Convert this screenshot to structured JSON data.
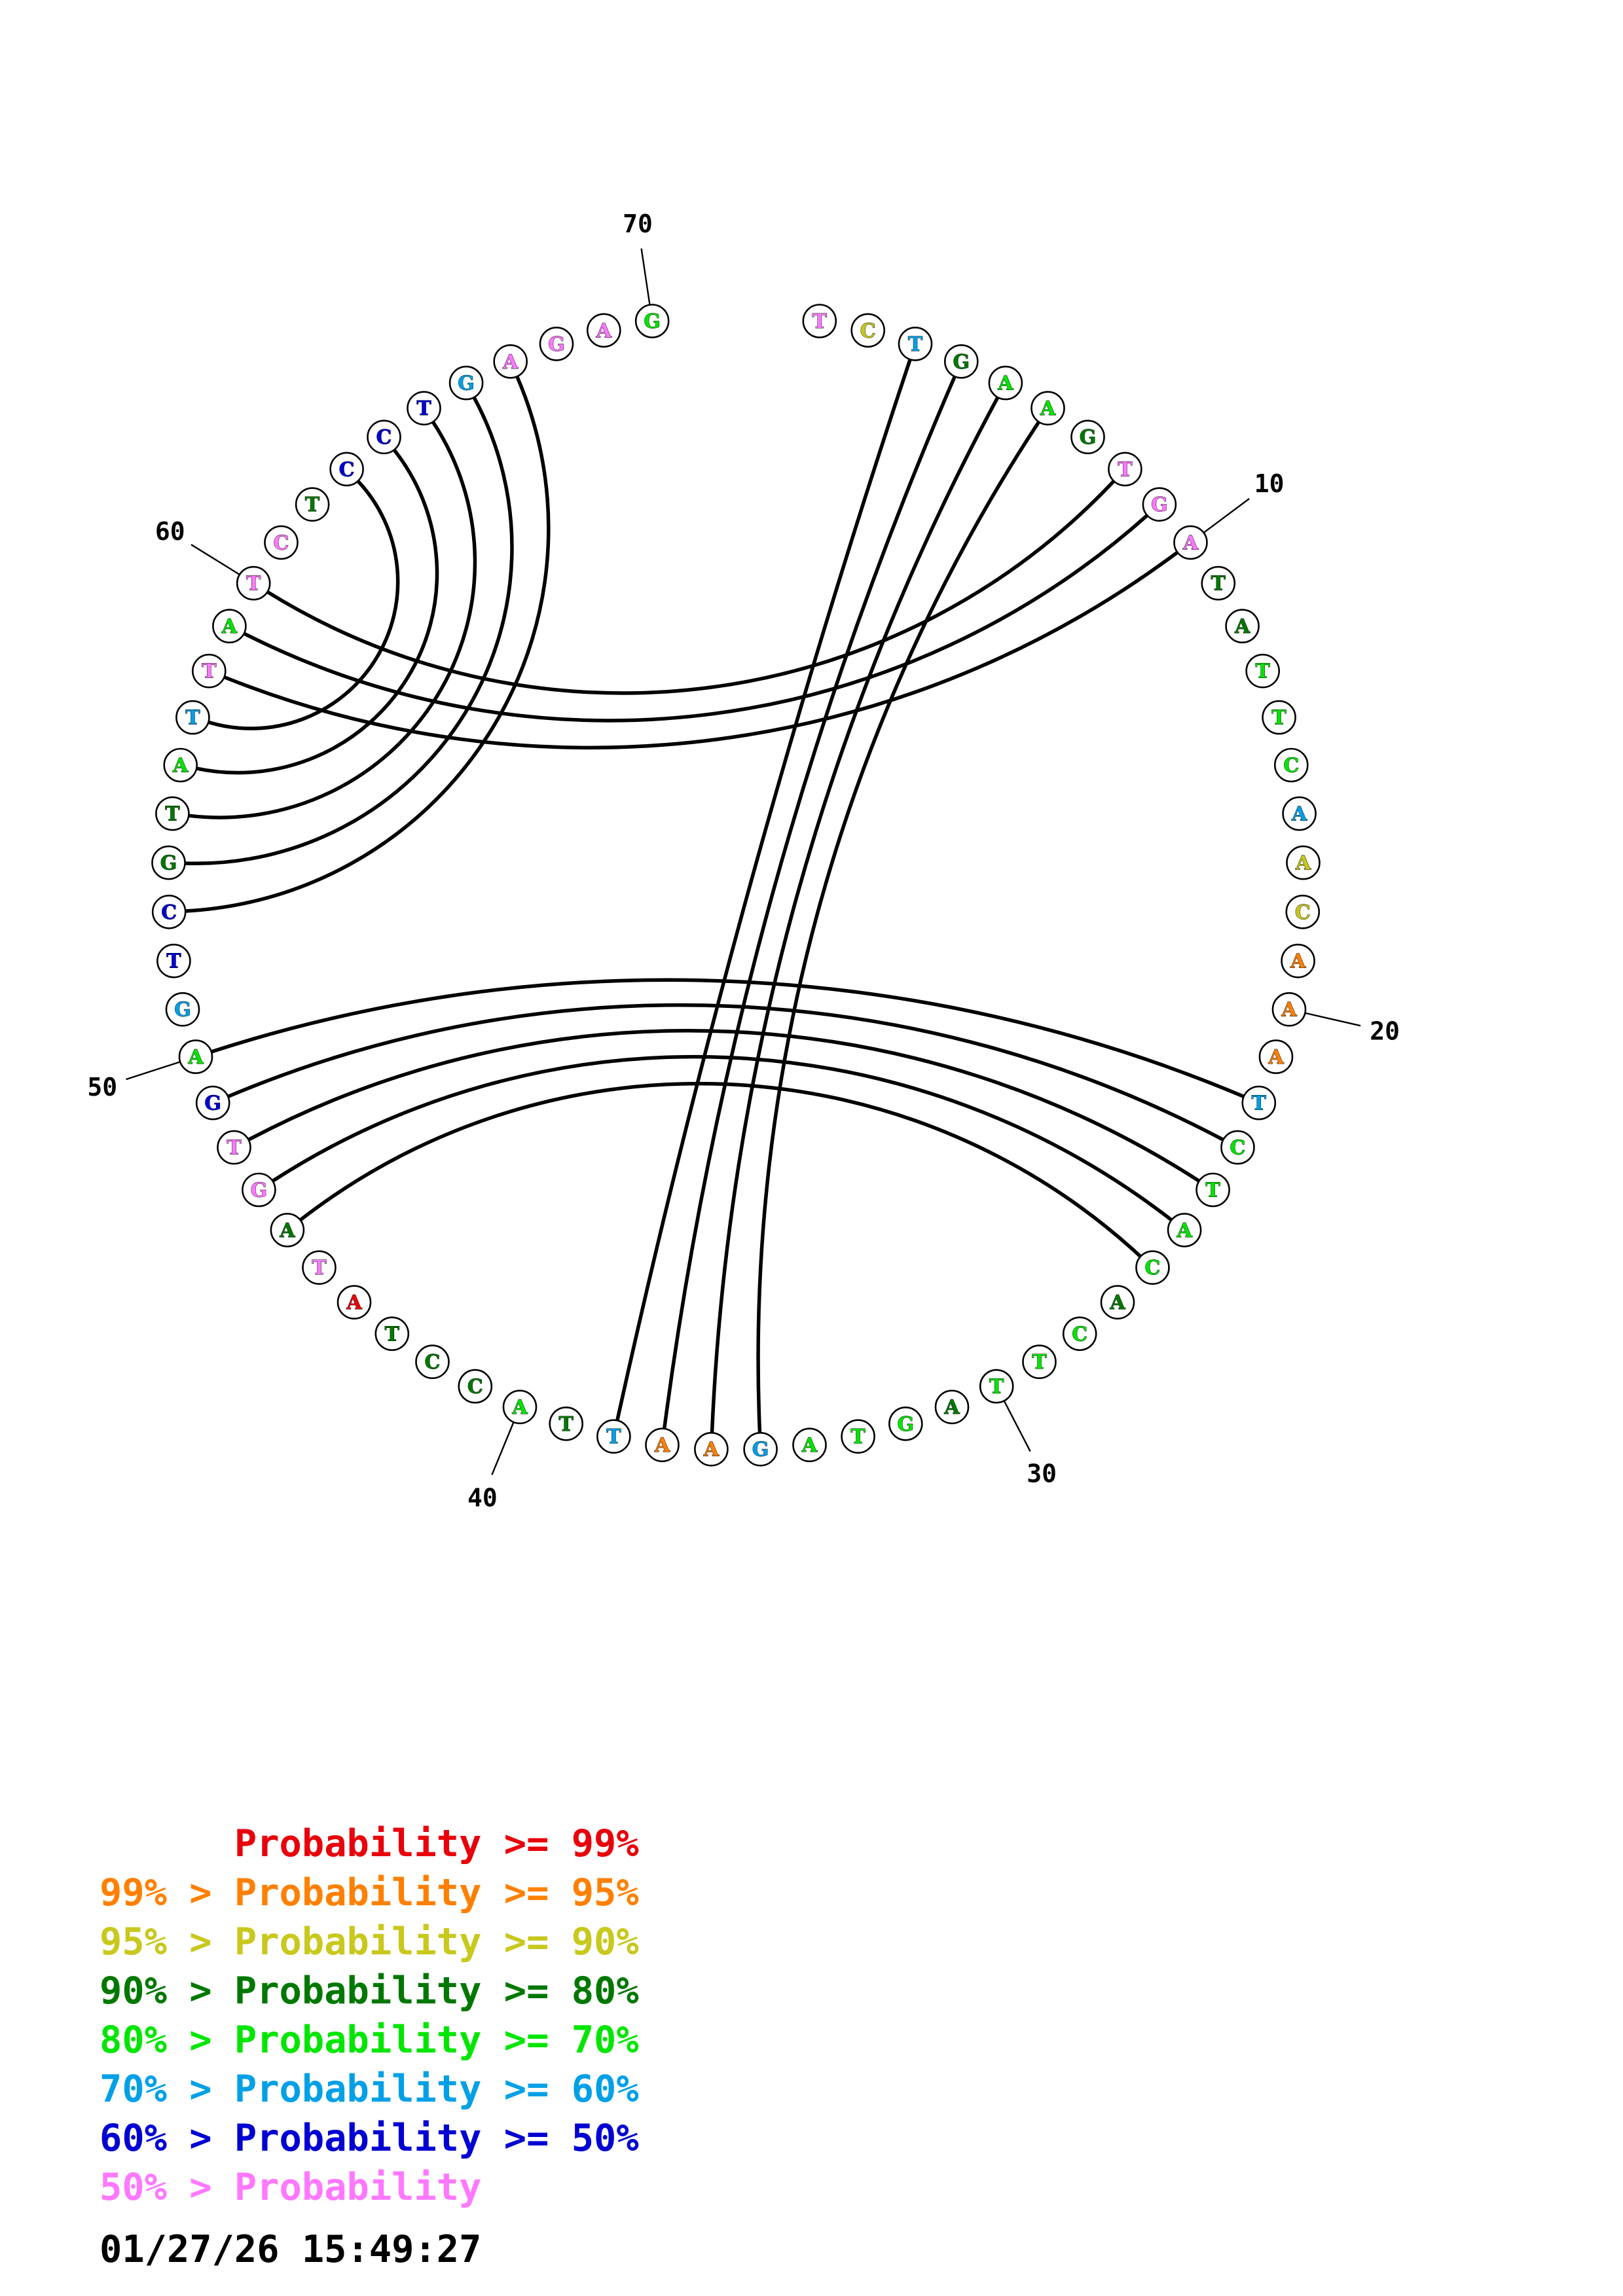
{
  "diagram": {
    "type": "circular RNA secondary structure plot",
    "sequence": [
      "T",
      "C",
      "T",
      "G",
      "A",
      "A",
      "G",
      "T",
      "G",
      "A",
      "T",
      "A",
      "T",
      "T",
      "C",
      "A",
      "A",
      "C",
      "A",
      "A",
      "A",
      "T",
      "C",
      "T",
      "A",
      "C",
      "A",
      "C",
      "T",
      "T",
      "A",
      "G",
      "T",
      "A",
      "G",
      "A",
      "A",
      "T",
      "T",
      "A",
      "C",
      "C",
      "T",
      "A",
      "T",
      "A",
      "G",
      "T",
      "G",
      "A",
      "G",
      "T",
      "C",
      "G",
      "T",
      "A",
      "T",
      "T",
      "A",
      "T",
      "C",
      "T",
      "C",
      "C",
      "T",
      "G",
      "A",
      "G",
      "A",
      "G"
    ],
    "probability_class": [
      7,
      2,
      5,
      3,
      4,
      4,
      3,
      7,
      7,
      7,
      3,
      3,
      4,
      4,
      4,
      5,
      2,
      2,
      1,
      1,
      1,
      5,
      4,
      4,
      4,
      4,
      3,
      4,
      4,
      4,
      3,
      4,
      4,
      4,
      5,
      1,
      1,
      5,
      3,
      4,
      3,
      3,
      3,
      0,
      7,
      3,
      7,
      7,
      6,
      4,
      5,
      6,
      6,
      3,
      3,
      4,
      5,
      7,
      4,
      7,
      7,
      3,
      6,
      6,
      6,
      5,
      7,
      7,
      7,
      4
    ],
    "pairs": [
      [
        3,
        38
      ],
      [
        4,
        37
      ],
      [
        5,
        36
      ],
      [
        6,
        35
      ],
      [
        8,
        60
      ],
      [
        9,
        59
      ],
      [
        10,
        58
      ],
      [
        22,
        50
      ],
      [
        23,
        49
      ],
      [
        24,
        48
      ],
      [
        25,
        47
      ],
      [
        26,
        46
      ],
      [
        53,
        67
      ],
      [
        54,
        66
      ],
      [
        55,
        65
      ],
      [
        56,
        64
      ],
      [
        57,
        63
      ]
    ],
    "position_ticks": [
      10,
      20,
      30,
      40,
      50,
      60,
      70
    ]
  },
  "legend": [
    {
      "prefix": "",
      "text": "Probability",
      "suffix": ">= 99%",
      "color": "#e8000b"
    },
    {
      "prefix": "99% >",
      "text": "Probability",
      "suffix": ">= 95%",
      "color": "#ff8000"
    },
    {
      "prefix": "95% >",
      "text": "Probability",
      "suffix": ">= 90%",
      "color": "#c8c81e"
    },
    {
      "prefix": "90% >",
      "text": "Probability",
      "suffix": ">= 80%",
      "color": "#007800"
    },
    {
      "prefix": "80% >",
      "text": "Probability",
      "suffix": ">= 70%",
      "color": "#00e600"
    },
    {
      "prefix": "70% >",
      "text": "Probability",
      "suffix": ">= 60%",
      "color": "#00a0e6"
    },
    {
      "prefix": "60% >",
      "text": "Probability",
      "suffix": ">= 50%",
      "color": "#0000d2"
    },
    {
      "prefix": "50% >",
      "text": "Probability",
      "suffix": "",
      "color": "#ff78ff"
    }
  ],
  "timestamp": "01/27/26 15:49:27"
}
